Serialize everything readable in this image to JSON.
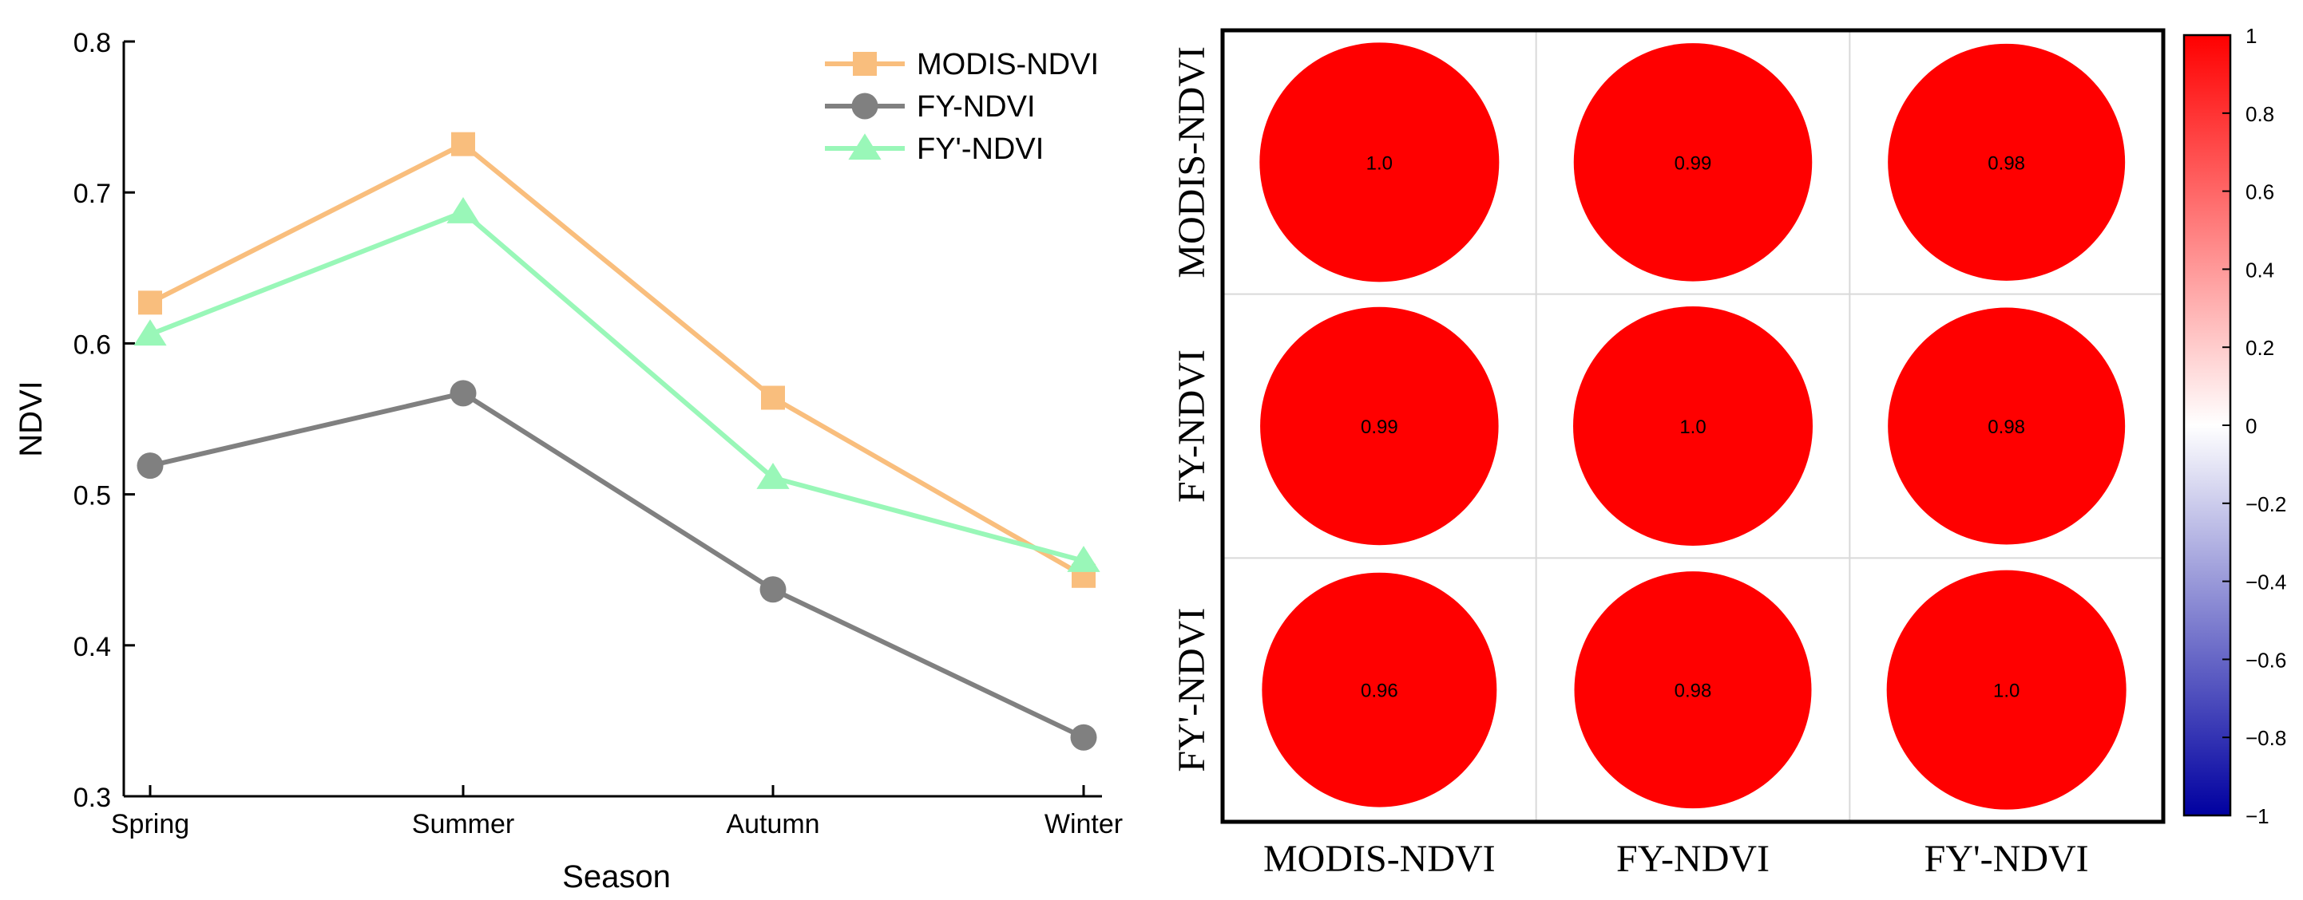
{
  "chart_data": [
    {
      "type": "line",
      "title": "",
      "xlabel": "Season",
      "ylabel": "NDVI",
      "categories": [
        "Spring",
        "Summer",
        "Autumn",
        "Winter"
      ],
      "ylim": [
        0.3,
        0.8
      ],
      "yticks": [
        "0.3",
        "0.4",
        "0.5",
        "0.6",
        "0.7",
        "0.8"
      ],
      "legend_position": "top-right",
      "series": [
        {
          "name": "MODIS-NDVI",
          "marker": "square",
          "color": "#F9BE7D",
          "values": [
            0.627,
            0.732,
            0.564,
            0.446
          ]
        },
        {
          "name": "FY-NDVI",
          "marker": "circle",
          "color": "#808080",
          "values": [
            0.519,
            0.567,
            0.437,
            0.339
          ]
        },
        {
          "name": "FY'-NDVI",
          "marker": "triangle",
          "color": "#99F7B8",
          "values": [
            0.606,
            0.687,
            0.511,
            0.456
          ]
        }
      ]
    },
    {
      "type": "heatmap",
      "title": "",
      "row_labels": [
        "MODIS-NDVI",
        "FY-NDVI",
        "FY'-NDVI"
      ],
      "col_labels": [
        "MODIS-NDVI",
        "FY-NDVI",
        "FY'-NDVI"
      ],
      "values": [
        [
          1.0,
          0.99,
          0.98
        ],
        [
          0.99,
          1.0,
          0.98
        ],
        [
          0.96,
          0.98,
          1.0
        ]
      ],
      "value_labels": [
        [
          "1.0",
          "0.99",
          "0.98"
        ],
        [
          "0.99",
          "1.0",
          "0.98"
        ],
        [
          "0.96",
          "0.98",
          "1.0"
        ]
      ],
      "cell_color": "#FF0000",
      "colorbar": {
        "range": [
          -1,
          1
        ],
        "ticks": [
          "1",
          "0.8",
          "0.6",
          "0.4",
          "0.2",
          "0",
          "−0.2",
          "−0.4",
          "−0.6",
          "−0.8",
          "−1"
        ],
        "colors": {
          "high": "#FF0000",
          "mid": "#FFFFFF",
          "low": "#0000A0"
        }
      }
    }
  ]
}
